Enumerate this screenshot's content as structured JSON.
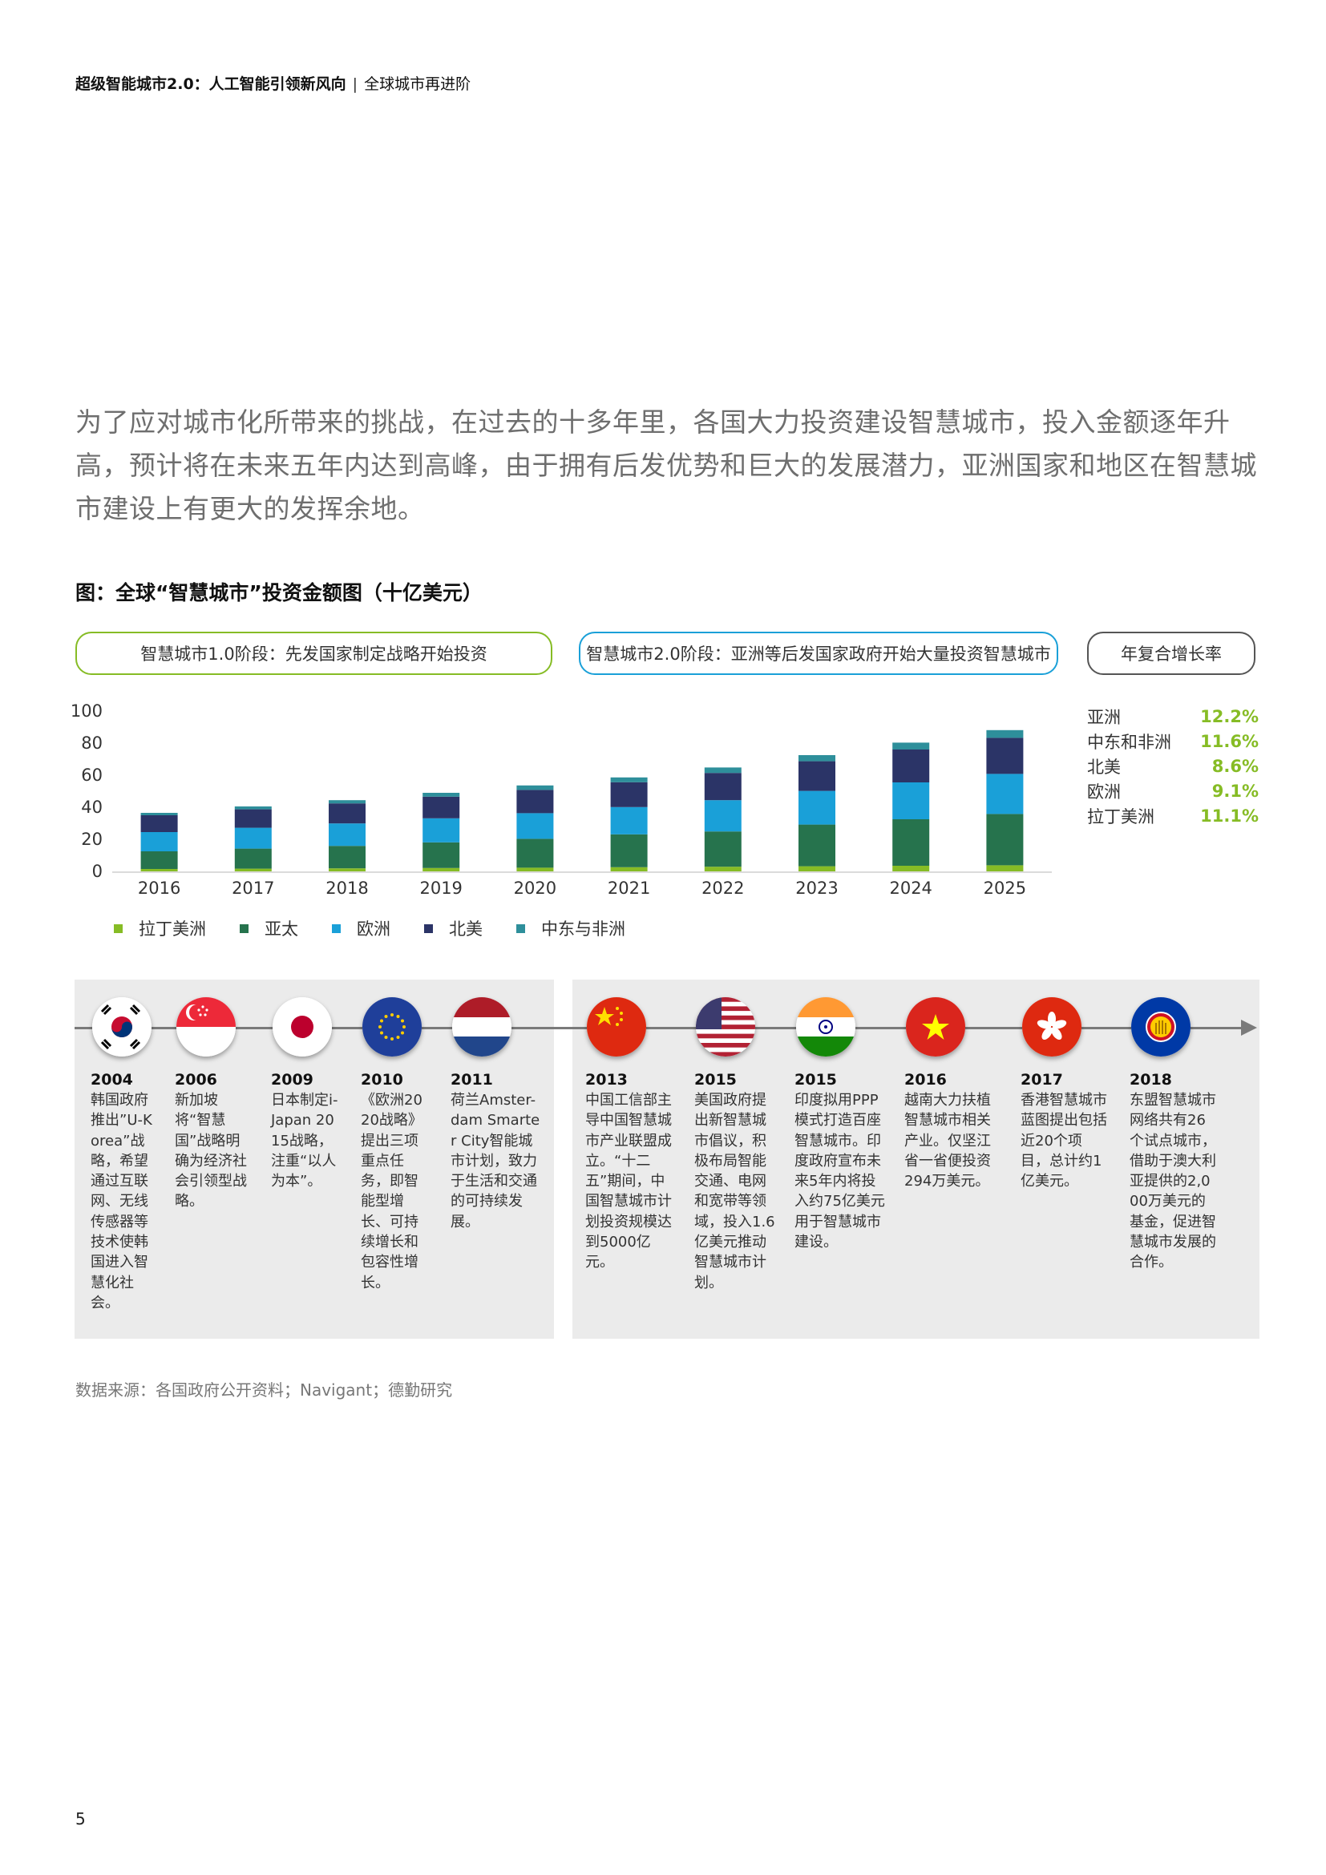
{
  "header": {
    "title": "超级智能城市2.0：人工智能引领新风向",
    "separator": "|",
    "subtitle": "全球城市再进阶"
  },
  "intro": "为了应对城市化所带来的挑战，在过去的十多年里，各国大力投资建设智慧城市，投入金额逐年升高，预计将在未来五年内达到高峰，由于拥有后发优势和巨大的发展潜力，亚洲国家和地区在智慧城市建设上有更大的发挥余地。",
  "figure_title": "图：全球“智慧城市”投资金额图（十亿美元）",
  "phases": {
    "phase1": "智慧城市1.0阶段：先发国家制定战略开始投资",
    "phase2": "智慧城市2.0阶段：亚洲等后发国家政府开始大量投资智慧城市",
    "cagr_label": "年复合增长率"
  },
  "cagr": [
    {
      "region": "亚洲",
      "value": "12.2%"
    },
    {
      "region": "中东和非洲",
      "value": "11.6%"
    },
    {
      "region": "北美",
      "value": "8.6%"
    },
    {
      "region": "欧洲",
      "value": "9.1%"
    },
    {
      "region": "拉丁美洲",
      "value": "11.1%"
    }
  ],
  "chart_data": {
    "type": "bar",
    "stacked": true,
    "categories": [
      "2016",
      "2017",
      "2018",
      "2019",
      "2020",
      "2021",
      "2022",
      "2023",
      "2024",
      "2025"
    ],
    "ylim": [
      0,
      100
    ],
    "yticks": [
      0,
      20,
      40,
      60,
      80,
      100
    ],
    "grid": false,
    "legend_position": "bottom",
    "series": [
      {
        "name": "拉丁美洲",
        "color": "#86bc25",
        "values": [
          1.5,
          1.7,
          1.9,
          2.1,
          2.3,
          2.6,
          2.9,
          3.2,
          3.5,
          3.8
        ]
      },
      {
        "name": "亚太",
        "color": "#26734d",
        "values": [
          11,
          12.5,
          14,
          16,
          18,
          20.5,
          22,
          26,
          29,
          32
        ]
      },
      {
        "name": "欧洲",
        "color": "#1aa0d8",
        "values": [
          12,
          13,
          14,
          15,
          16,
          17,
          19.5,
          21,
          23,
          25
        ]
      },
      {
        "name": "北美",
        "color": "#2b3467",
        "values": [
          10.5,
          11.5,
          12.5,
          13.5,
          14.5,
          15.5,
          17,
          18.5,
          20.5,
          22.5
        ]
      },
      {
        "name": "中东与非洲",
        "color": "#2e8f9b",
        "values": [
          1.5,
          1.8,
          2.0,
          2.4,
          2.8,
          3.0,
          3.4,
          3.8,
          4.3,
          4.8
        ]
      }
    ]
  },
  "timeline": [
    {
      "flag": "korea-flag-icon",
      "year": "2004",
      "text": "韩国政府推出”U-Korea”战略，希望通过互联网、无线传感器等技术使韩国进入智慧化社会。"
    },
    {
      "flag": "singapore-flag-icon",
      "year": "2006",
      "text": "新加坡将“智慧国”战略明确为经济社会引领型战略。"
    },
    {
      "flag": "japan-flag-icon",
      "year": "2009",
      "text": "日本制定i-Japan 2015战略，注重“以人为本”。"
    },
    {
      "flag": "eu-flag-icon",
      "year": "2010",
      "text": "《欧洲2020战略》提出三项重点任务，即智能型增长、可持续增长和包容性增长。"
    },
    {
      "flag": "netherlands-flag-icon",
      "year": "2011",
      "text": "荷兰Amster-dam Smarter City智能城市计划，致力于生活和交通的可持续发展。"
    },
    {
      "flag": "china-flag-icon",
      "year": "2013",
      "text": "中国工信部主导中国智慧城市产业联盟成立。“十二五”期间，中国智慧城市计划投资规模达到5000亿元。"
    },
    {
      "flag": "usa-flag-icon",
      "year": "2015",
      "text": "美国政府提出新智慧城市倡议，积极布局智能交通、电网和宽带等领域，投入1.6亿美元推动智慧城市计划。"
    },
    {
      "flag": "india-flag-icon",
      "year": "2015",
      "text": "印度拟用PPP模式打造百座智慧城市。印度政府宣布未来5年内将投入约75亿美元用于智慧城市建设。"
    },
    {
      "flag": "vietnam-flag-icon",
      "year": "2016",
      "text": "越南大力扶植智慧城市相关产业。仅坚江省一省便投资294万美元。"
    },
    {
      "flag": "hongkong-flag-icon",
      "year": "2017",
      "text": "香港智慧城市蓝图提出包括近20个项目，总计约1亿美元。"
    },
    {
      "flag": "asean-flag-icon",
      "year": "2018",
      "text": "东盟智慧城市网络共有26个试点城市，借助于澳大利亚提供的2,000万美元的基金，促进智慧城市发展的合作。"
    }
  ],
  "source": "数据来源：各国政府公开资料；Navigant；德勤研究",
  "page_number": "5"
}
